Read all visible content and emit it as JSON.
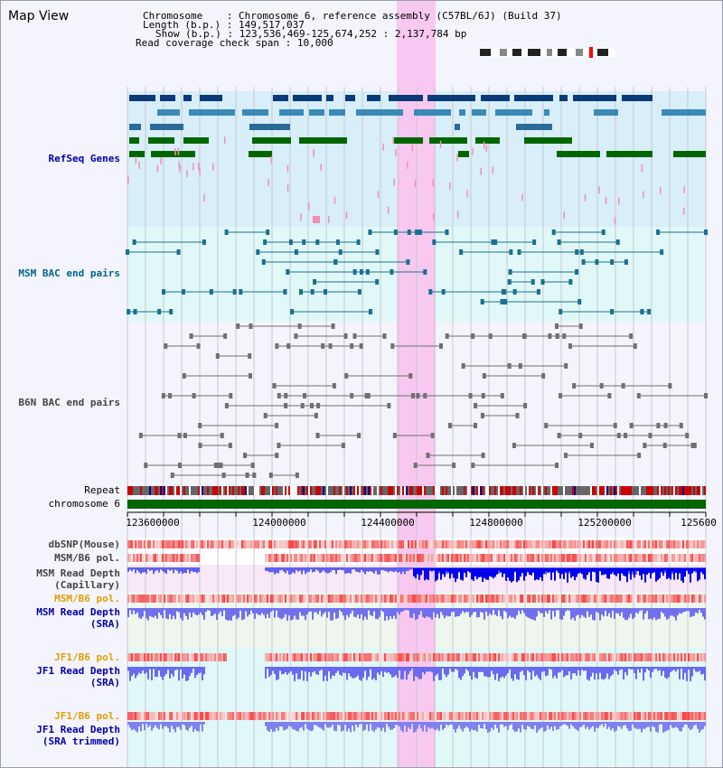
{
  "title": "Map View",
  "info": {
    "chromosome_label": "Chromosome",
    "chromosome_value": "Chromosome 6, reference assembly (C57BL/6J) (Build 37)",
    "length_label": "Length (b.p.)",
    "length_value": "149,517,037",
    "show_label": "Show (b.p.)",
    "show_value": "123,536,469-125,674,252 : 2,137,784 bp",
    "coverage_label": "Read coverage check span",
    "coverage_value": "10,000"
  },
  "tracks": {
    "refseq": "RefSeq Genes",
    "msm_bac": "MSM BAC end pairs",
    "b6n_bac": "B6N BAC end pairs",
    "repeat": "Repeat",
    "chromosome": "chromosome 6",
    "dbsnp": "dbSNP(Mouse)",
    "msm_b6_pol": "MSM/B6 pol.",
    "msm_depth_cap": "MSM Read Depth",
    "msm_depth_cap_sub": "(Capillary)",
    "msm_b6_pol2": "MSM/B6 pol.",
    "msm_depth_sra": "MSM Read Depth",
    "msm_depth_sra_sub": "(SRA)",
    "jf1_b6_pol": "JF1/B6 pol.",
    "jf1_depth_sra": "JF1 Read Depth",
    "jf1_depth_sra_sub": "(SRA)",
    "jf1_b6_pol2": "JF1/B6 pol.",
    "jf1_depth_trim": "JF1 Read Depth",
    "jf1_depth_trim_sub": "(SRA trimmed)"
  },
  "axis_ticks": [
    "123600000",
    "124000000",
    "124400000",
    "124800000",
    "125200000",
    "125600"
  ],
  "colors": {
    "refseq_label": "#0000aa",
    "msm_label": "#006688",
    "b6n_label": "#444444",
    "pol_label": "#e0a000",
    "depth_label": "#0000aa",
    "highlight": "#f8c8f0",
    "chromosome_bar": "#006600",
    "depth_blue": "#0000ee",
    "depth_light": "#7070ee"
  }
}
